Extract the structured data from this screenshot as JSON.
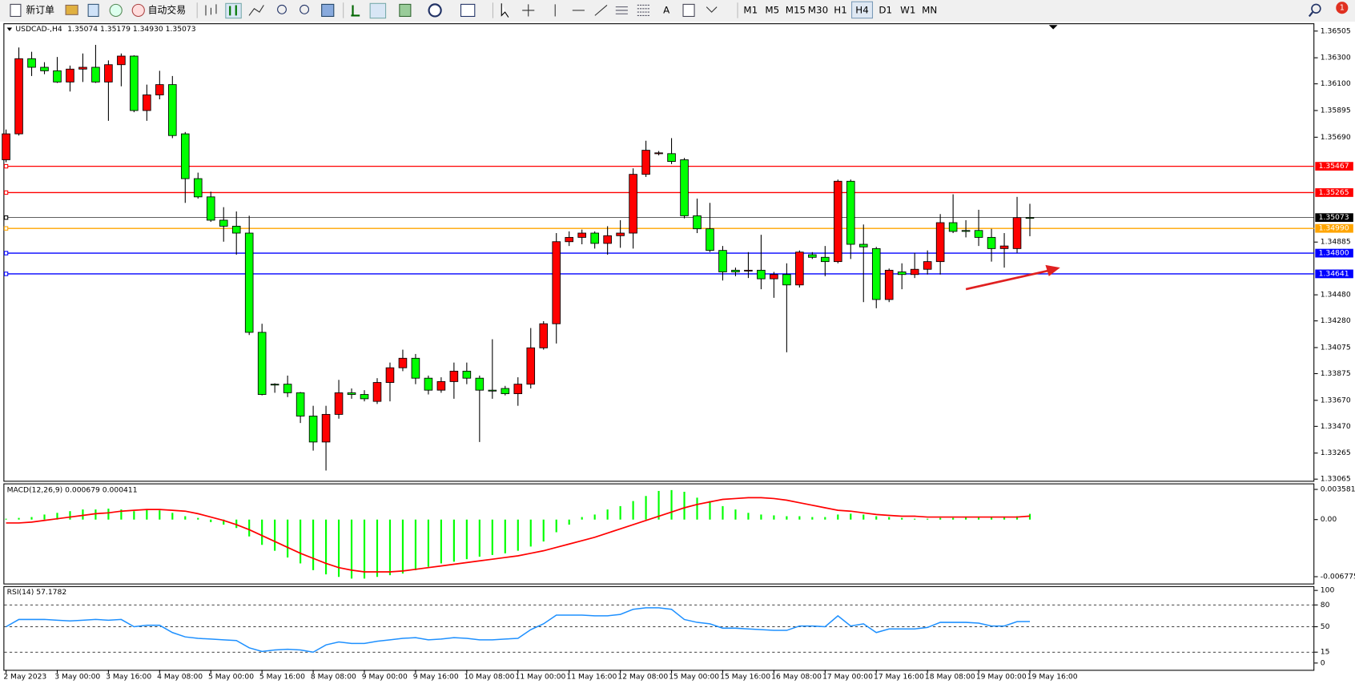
{
  "toolbar": {
    "new_order": "新订单",
    "auto_trading": "自动交易",
    "text_tool": "A",
    "timeframes": [
      "M1",
      "M5",
      "M15",
      "M30",
      "H1",
      "H4",
      "D1",
      "W1",
      "MN"
    ],
    "notification_count": 1
  },
  "chart_data": [
    {
      "type": "candlestick",
      "title": "USDCAD-,H4",
      "info": "1.35074 1.35179 1.34930 1.35073",
      "up_color": "#ff0000",
      "down_color": "#00ff00",
      "categories": [
        "2 May 2023",
        null,
        null,
        null,
        "3 May 00:00",
        null,
        null,
        null,
        "3 May 16:00",
        null,
        null,
        null,
        "4 May 08:00",
        null,
        null,
        null,
        "5 May 00:00",
        null,
        null,
        null,
        "5 May 16:00",
        null,
        null,
        null,
        "8 May 08:00",
        null,
        null,
        null,
        "9 May 00:00",
        null,
        null,
        null,
        "9 May 16:00",
        null,
        null,
        null,
        "10 May 08:00",
        null,
        null,
        null,
        "11 May 00:00",
        null,
        null,
        null,
        "11 May 16:00",
        null,
        null,
        null,
        "12 May 08:00",
        null,
        null,
        null,
        "15 May 00:00",
        null,
        null,
        null,
        "15 May 16:00",
        null,
        null,
        null,
        "16 May 08:00",
        null,
        null,
        null,
        "17 May 00:00",
        null,
        null,
        null,
        "17 May 16:00",
        null,
        null,
        null,
        "18 May 08:00",
        null,
        null,
        null,
        "19 May 00:00",
        null,
        null,
        null,
        "19 May 16:00"
      ],
      "open": [
        1.35517,
        1.35716,
        1.36293,
        1.36227,
        1.362,
        1.36114,
        1.36213,
        1.36227,
        1.36114,
        1.36247,
        1.36313,
        1.35895,
        1.36015,
        1.36094,
        1.35716,
        1.35372,
        1.35232,
        1.35053,
        1.35007,
        1.34954,
        1.34192,
        1.33794,
        1.33794,
        1.33728,
        1.33549,
        1.3335,
        1.33562,
        1.33728,
        1.33715,
        1.33662,
        1.33807,
        1.3392,
        1.33993,
        1.3384,
        1.33748,
        1.33814,
        1.33894,
        1.3384,
        1.33748,
        1.33761,
        1.33721,
        1.33794,
        1.34073,
        1.34258,
        1.34888,
        1.34921,
        1.34954,
        1.34875,
        1.34934,
        1.34954,
        1.35405,
        1.35564,
        1.35564,
        1.35517,
        1.35087,
        1.34987,
        1.34821,
        1.34669,
        1.34669,
        1.34669,
        1.34603,
        1.34636,
        1.34556,
        1.34788,
        1.34768,
        1.34735,
        1.35352,
        1.34868,
        1.34835,
        1.34444,
        1.34656,
        1.34636,
        1.34676,
        1.34735,
        1.35034,
        1.34974,
        1.34974,
        1.34921,
        1.34835,
        1.34835,
        1.35074
      ],
      "high": [
        1.35749,
        1.36379,
        1.36346,
        1.36266,
        1.36306,
        1.3624,
        1.36333,
        1.36399,
        1.3628,
        1.36333,
        1.36319,
        1.36094,
        1.362,
        1.3616,
        1.3573,
        1.35418,
        1.35272,
        1.35153,
        1.3512,
        1.35087,
        1.34258,
        1.33801,
        1.3386,
        1.33734,
        1.33628,
        1.33628,
        1.33827,
        1.33761,
        1.33748,
        1.3384,
        1.3396,
        1.34059,
        1.34026,
        1.3386,
        1.33847,
        1.3396,
        1.3396,
        1.3386,
        1.34139,
        1.33781,
        1.33847,
        1.34225,
        1.34278,
        1.34954,
        1.34967,
        1.34981,
        1.34967,
        1.35007,
        1.35053,
        1.35451,
        1.35663,
        1.35584,
        1.35683,
        1.35531,
        1.35219,
        1.35186,
        1.34855,
        1.34689,
        1.34808,
        1.34941,
        1.34656,
        1.34722,
        1.34821,
        1.34808,
        1.34855,
        1.35365,
        1.35365,
        1.3502,
        1.34848,
        1.34682,
        1.34722,
        1.34802,
        1.34821,
        1.351,
        1.35252,
        1.35053,
        1.35133,
        1.34987,
        1.34954,
        1.35232,
        1.35179
      ],
      "low": [
        1.35498,
        1.35703,
        1.3616,
        1.36174,
        1.36107,
        1.36041,
        1.36114,
        1.36107,
        1.35816,
        1.36081,
        1.35882,
        1.35816,
        1.35981,
        1.35683,
        1.35186,
        1.35219,
        1.3504,
        1.34888,
        1.34788,
        1.34172,
        1.33708,
        1.33728,
        1.33695,
        1.33496,
        1.33284,
        1.33131,
        1.33529,
        1.33682,
        1.33662,
        1.33642,
        1.33662,
        1.33894,
        1.33794,
        1.33715,
        1.33728,
        1.33682,
        1.33794,
        1.3335,
        1.33682,
        1.33708,
        1.33628,
        1.33761,
        1.34059,
        1.34106,
        1.34855,
        1.34868,
        1.34835,
        1.34788,
        1.34841,
        1.34835,
        1.35385,
        1.35551,
        1.35484,
        1.35067,
        1.34954,
        1.34808,
        1.3459,
        1.34623,
        1.34609,
        1.34523,
        1.34457,
        1.34039,
        1.34536,
        1.34755,
        1.34623,
        1.34722,
        1.34755,
        1.34424,
        1.34377,
        1.34424,
        1.34523,
        1.34609,
        1.34636,
        1.34636,
        1.34954,
        1.34921,
        1.34855,
        1.34735,
        1.34689,
        1.34802,
        1.3493
      ],
      "close": [
        1.35716,
        1.36293,
        1.36227,
        1.362,
        1.36114,
        1.36213,
        1.36227,
        1.36114,
        1.36247,
        1.36313,
        1.35895,
        1.36015,
        1.36094,
        1.35703,
        1.35372,
        1.35232,
        1.35053,
        1.35007,
        1.34954,
        1.34192,
        1.33715,
        1.33788,
        1.33728,
        1.33549,
        1.3335,
        1.33562,
        1.33728,
        1.33715,
        1.33682,
        1.33807,
        1.3392,
        1.33993,
        1.3384,
        1.33748,
        1.33814,
        1.33894,
        1.3384,
        1.33748,
        1.33741,
        1.33721,
        1.33794,
        1.34073,
        1.34258,
        1.34888,
        1.34921,
        1.34954,
        1.34875,
        1.34934,
        1.34954,
        1.35405,
        1.3559,
        1.3557,
        1.35504,
        1.35087,
        1.34987,
        1.34821,
        1.34656,
        1.34656,
        1.34669,
        1.34603,
        1.34636,
        1.34556,
        1.34808,
        1.34768,
        1.34735,
        1.35352,
        1.34868,
        1.34848,
        1.34444,
        1.34669,
        1.34636,
        1.34676,
        1.34735,
        1.35034,
        1.34967,
        1.34967,
        1.34921,
        1.34835,
        1.34855,
        1.35073,
        1.35073
      ],
      "ylim": [
        1.33052,
        1.36558
      ],
      "yticks": [
        1.36505,
        {
          "value": 1.363,
          "label": "1.36300"
        },
        {
          "value": 1.361,
          "label": "1.36100"
        },
        1.35895,
        {
          "value": 1.3569,
          "label": "1.35690"
        },
        1.34885,
        {
          "value": 1.3448,
          "label": "1.34480"
        },
        {
          "value": 1.3428,
          "label": "1.34280"
        },
        1.34075,
        1.33875,
        {
          "value": 1.3367,
          "label": "1.33670"
        },
        {
          "value": 1.3347,
          "label": "1.33470"
        },
        1.33265,
        1.33065
      ],
      "levels": [
        {
          "value": 1.35467,
          "color": "#ff0000"
        },
        {
          "value": 1.35265,
          "color": "#ff0000"
        },
        {
          "value": 1.35073,
          "color": "#000000"
        },
        {
          "value": 1.3499,
          "label": "1.34990",
          "color": "#ffa500"
        },
        {
          "value": 1.348,
          "label": "1.34800",
          "color": "#0000ff"
        },
        {
          "value": 1.34641,
          "color": "#0000ff"
        }
      ]
    },
    {
      "type": "bar",
      "title": "MACD(12,26,9) 0.000679 0.000411",
      "color": "#00ff00",
      "values": [
        0.0001,
        0.0002,
        0.0003,
        0.0006,
        0.0008,
        0.001,
        0.0012,
        0.0012,
        0.0013,
        0.0012,
        0.001,
        0.0012,
        0.0011,
        0.0008,
        0.0004,
        0.0002,
        -0.0003,
        -0.0006,
        -0.001,
        -0.002,
        -0.003,
        -0.0037,
        -0.0045,
        -0.0052,
        -0.006,
        -0.0065,
        -0.0068,
        -0.007,
        -0.007,
        -0.0068,
        -0.0066,
        -0.0064,
        -0.006,
        -0.0056,
        -0.0052,
        -0.005,
        -0.0047,
        -0.0044,
        -0.0042,
        -0.004,
        -0.0037,
        -0.0032,
        -0.0026,
        -0.0015,
        -0.0006,
        0.0003,
        0.0006,
        0.0012,
        0.0016,
        0.0022,
        0.0028,
        0.0034,
        0.0035,
        0.0033,
        0.0026,
        0.0022,
        0.0016,
        0.0012,
        0.0008,
        0.0006,
        0.0005,
        0.0004,
        0.0004,
        0.0003,
        0.0003,
        0.0006,
        0.0007,
        0.0006,
        0.0004,
        0.0003,
        0.0002,
        0.0001,
        0.0001,
        0.0002,
        0.0002,
        0.0003,
        0.0003,
        0.0003,
        0.0003,
        0.0004,
        0.000679
      ],
      "line": {
        "color": "#ff0000",
        "values": [
          -0.0004,
          -0.0004,
          -0.0003,
          -0.0001,
          0.0001,
          0.0003,
          0.0005,
          0.0007,
          0.0008,
          0.001,
          0.0011,
          0.0012,
          0.0012,
          0.0011,
          0.001,
          0.0007,
          0.0003,
          -0.0001,
          -0.0006,
          -0.0012,
          -0.0019,
          -0.0026,
          -0.0033,
          -0.004,
          -0.0046,
          -0.0052,
          -0.0057,
          -0.006,
          -0.0062,
          -0.0062,
          -0.0062,
          -0.0061,
          -0.0059,
          -0.0057,
          -0.0055,
          -0.0053,
          -0.0051,
          -0.0049,
          -0.0047,
          -0.0045,
          -0.0043,
          -0.004,
          -0.0037,
          -0.0033,
          -0.0029,
          -0.0025,
          -0.0021,
          -0.0016,
          -0.0011,
          -0.0006,
          -0.0001,
          0.0004,
          0.0009,
          0.0014,
          0.0018,
          0.0021,
          0.0024,
          0.0025,
          0.0026,
          0.0026,
          0.0025,
          0.0023,
          0.002,
          0.0017,
          0.0014,
          0.0011,
          0.001,
          0.0008,
          0.0006,
          0.0005,
          0.0004,
          0.0004,
          0.0003,
          0.0003,
          0.0003,
          0.0003,
          0.0003,
          0.0003,
          0.0003,
          0.0003,
          0.000411
        ]
      },
      "ylim": [
        -0.00759,
        0.00419
      ],
      "yticks": [
        0.003581,
        {
          "value": 0,
          "label": "0.00"
        },
        -0.006775
      ]
    },
    {
      "type": "line",
      "title": "RSI(14) 57.1782",
      "color": "#1e90ff",
      "values": [
        50,
        60,
        60,
        60,
        59,
        58,
        59,
        60,
        59,
        60,
        50,
        52,
        52,
        42,
        36,
        34,
        33,
        32,
        31,
        21,
        16,
        18,
        19,
        18,
        15,
        25,
        29,
        27,
        27,
        30,
        32,
        34,
        35,
        32,
        33,
        35,
        34,
        32,
        32,
        33,
        34,
        46,
        54,
        66,
        66,
        66,
        65,
        65,
        67,
        74,
        76,
        76,
        74,
        60,
        56,
        54,
        48,
        48,
        47,
        46,
        45,
        45,
        51,
        51,
        50,
        65,
        51,
        54,
        42,
        47,
        47,
        47,
        49,
        56,
        56,
        56,
        55,
        51,
        51,
        57,
        57.1782
      ],
      "ylim": [
        -9.4,
        104.7
      ],
      "yticks": [
        100,
        80,
        50,
        15,
        0
      ],
      "levels": [
        80,
        50,
        15
      ]
    }
  ]
}
